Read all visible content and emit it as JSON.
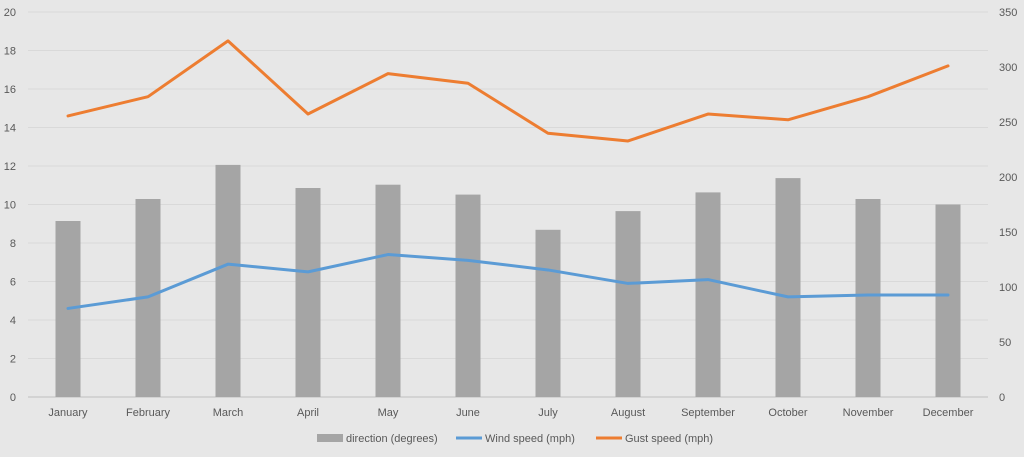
{
  "chart_data": {
    "type": "bar",
    "categories": [
      "January",
      "February",
      "March",
      "April",
      "May",
      "June",
      "July",
      "August",
      "September",
      "October",
      "November",
      "December"
    ],
    "series": [
      {
        "name": "direction (degrees)",
        "type": "bar",
        "axis": "right",
        "color": "#a5a5a5",
        "values": [
          160,
          180,
          211,
          190,
          193,
          184,
          152,
          169,
          186,
          199,
          180,
          175
        ]
      },
      {
        "name": "Wind speed (mph)",
        "type": "line",
        "axis": "left",
        "color": "#5b9bd5",
        "values": [
          4.6,
          5.2,
          6.9,
          6.5,
          7.4,
          7.1,
          6.6,
          5.9,
          6.1,
          5.2,
          5.3,
          5.3
        ]
      },
      {
        "name": "Gust speed (mph)",
        "type": "line",
        "axis": "left",
        "color": "#ed7d31",
        "values": [
          14.6,
          15.6,
          18.5,
          14.7,
          16.8,
          16.3,
          13.7,
          13.3,
          14.7,
          14.4,
          15.6,
          17.2
        ]
      }
    ],
    "left_axis": {
      "min": 0,
      "max": 20,
      "step": 2,
      "ticks": [
        "0",
        "2",
        "4",
        "6",
        "8",
        "10",
        "12",
        "14",
        "16",
        "18",
        "20"
      ]
    },
    "right_axis": {
      "min": 0,
      "max": 350,
      "step": 50,
      "ticks": [
        "0",
        "50",
        "100",
        "150",
        "200",
        "250",
        "300",
        "350"
      ]
    },
    "grid": true,
    "legend": "bottom"
  }
}
